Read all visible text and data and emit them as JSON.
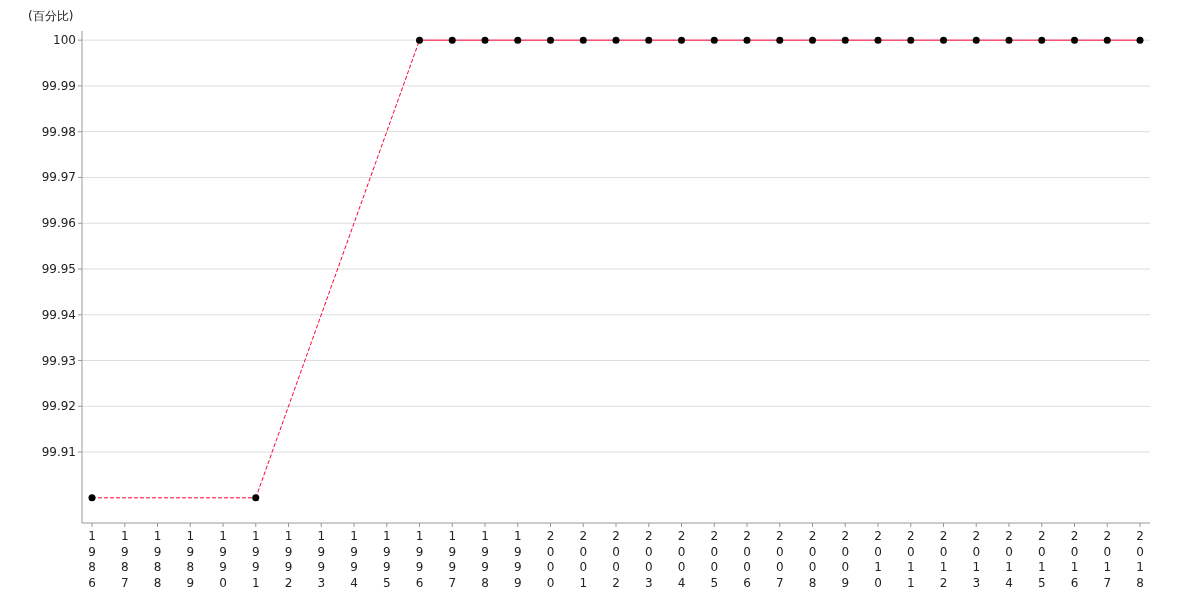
{
  "chart_data": {
    "type": "line",
    "ylabel": "(百分比)",
    "categories": [
      "1986",
      "1987",
      "1988",
      "1989",
      "1990",
      "1991",
      "1992",
      "1993",
      "1994",
      "1995",
      "1996",
      "1997",
      "1998",
      "1999",
      "2000",
      "2001",
      "2002",
      "2003",
      "2004",
      "2005",
      "2006",
      "2007",
      "2008",
      "2009",
      "2010",
      "2011",
      "2012",
      "2013",
      "2014",
      "2015",
      "2016",
      "2017",
      "2018"
    ],
    "series": [
      {
        "color": "#ff0033",
        "values": [
          99.9,
          null,
          null,
          null,
          null,
          99.9,
          null,
          null,
          null,
          null,
          100,
          100,
          100,
          100,
          100,
          100,
          100,
          100,
          100,
          100,
          100,
          100,
          100,
          100,
          100,
          100,
          100,
          100,
          100,
          100,
          100,
          100,
          100
        ]
      }
    ],
    "ylim": [
      99.8945,
      100.002
    ],
    "yticks": [
      99.91,
      99.92,
      99.93,
      99.94,
      99.95,
      99.96,
      99.97,
      99.98,
      99.99,
      100
    ],
    "grid": "y",
    "marker": "circle",
    "line_style": "solid"
  }
}
